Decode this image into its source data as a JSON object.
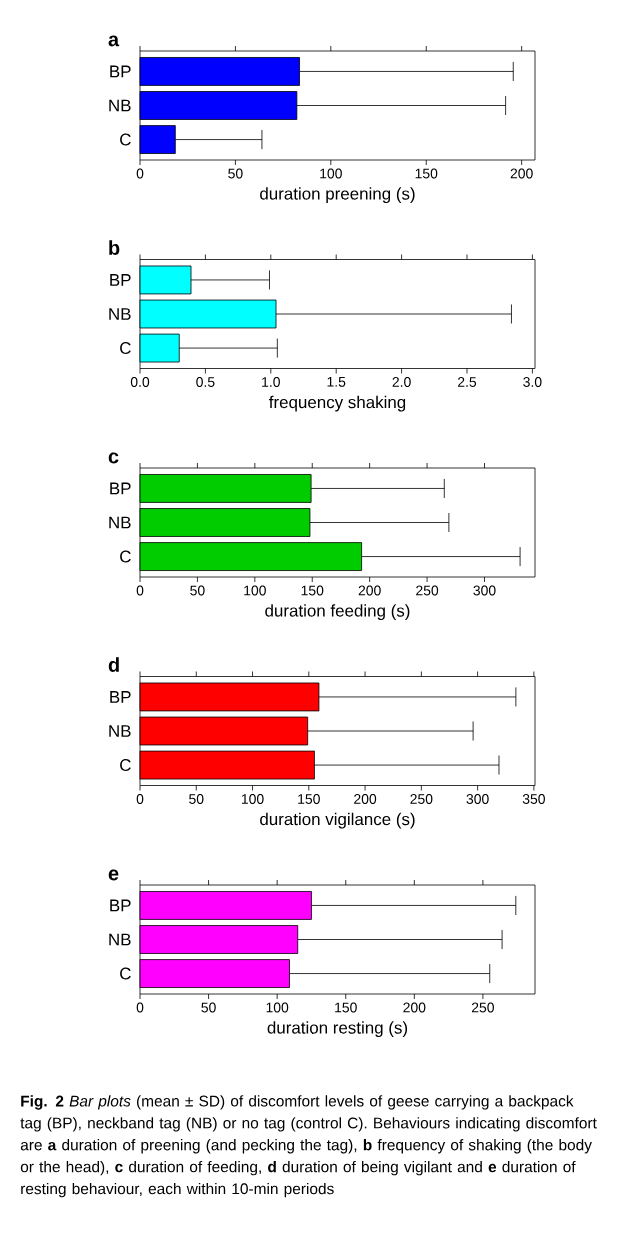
{
  "chart_data": [
    {
      "type": "bar",
      "orientation": "horizontal",
      "title": "a",
      "xlabel": "duration preening (s)",
      "categories": [
        "BP",
        "NB",
        "C"
      ],
      "values": [
        83.6,
        82.2,
        18.5
      ],
      "errors": [
        [
          83.6,
          195.6
        ],
        [
          82.2,
          191.6
        ],
        [
          18.5,
          63.9
        ]
      ],
      "color": "#0000ff",
      "xlim": [
        0,
        207
      ],
      "xticks": [
        0,
        50,
        100,
        150,
        200
      ]
    },
    {
      "type": "bar",
      "orientation": "horizontal",
      "title": "b",
      "xlabel": "frequency shaking",
      "categories": [
        "BP",
        "NB",
        "C"
      ],
      "values": [
        0.39,
        1.04,
        0.3
      ],
      "errors": [
        [
          0.39,
          0.99
        ],
        [
          1.04,
          2.84
        ],
        [
          0.3,
          1.05
        ]
      ],
      "color": "#00ffff",
      "xlim": [
        0,
        3.02
      ],
      "xticks": [
        {
          "value": 0,
          "label": "0.0"
        },
        {
          "value": 0.5,
          "label": "0.5"
        },
        {
          "value": 1,
          "label": "1.0"
        },
        {
          "value": 1.5,
          "label": "1.5"
        },
        {
          "value": 2,
          "label": "2.0"
        },
        {
          "value": 2.5,
          "label": "2.5"
        },
        {
          "value": 3,
          "label": "3.0"
        }
      ]
    },
    {
      "type": "bar",
      "orientation": "horizontal",
      "title": "c",
      "xlabel": "duration feeding (s)",
      "categories": [
        "BP",
        "NB",
        "C"
      ],
      "values": [
        149,
        148,
        193
      ],
      "errors": [
        [
          149,
          265
        ],
        [
          148,
          269
        ],
        [
          193,
          331
        ]
      ],
      "color": "#00cc00",
      "xlim": [
        0,
        344
      ],
      "xticks": [
        0,
        50,
        100,
        150,
        200,
        250,
        300
      ]
    },
    {
      "type": "bar",
      "orientation": "horizontal",
      "title": "d",
      "xlabel": "duration vigilance (s)",
      "categories": [
        "BP",
        "NB",
        "C"
      ],
      "values": [
        159,
        149,
        155
      ],
      "errors": [
        [
          159,
          334
        ],
        [
          149,
          296
        ],
        [
          155,
          319
        ]
      ],
      "color": "#ff0000",
      "xlim": [
        0,
        351
      ],
      "xticks": [
        0,
        50,
        100,
        150,
        200,
        250,
        300,
        350
      ]
    },
    {
      "type": "bar",
      "orientation": "horizontal",
      "title": "e",
      "xlabel": "duration resting (s)",
      "categories": [
        "BP",
        "NB",
        "C"
      ],
      "values": [
        125,
        115,
        109
      ],
      "errors": [
        [
          125,
          274
        ],
        [
          115,
          264
        ],
        [
          109,
          255
        ]
      ],
      "color": "#ff00ff",
      "xlim": [
        0,
        288
      ],
      "xticks": [
        0,
        50,
        100,
        150,
        200,
        250
      ],
      "annotations": [
        "**Fig. 2** *Bar plots* (mean ± SD) of discomfort levels of geese carrying a backpack tag (BP), neckband tag (NB) or no tag (control C). Behaviours indicating discomfort are **a** duration of preening (and pecking the tag), **b** frequency of shaking (the body or the head), **c** duration of feeding, **d** duration of being vigilant and **e** duration of resting behaviour, each within 10-min periods"
      ]
    }
  ]
}
